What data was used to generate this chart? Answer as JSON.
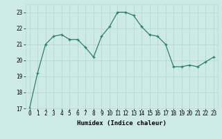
{
  "x": [
    0,
    1,
    2,
    3,
    4,
    5,
    6,
    7,
    8,
    9,
    10,
    11,
    12,
    13,
    14,
    15,
    16,
    17,
    18,
    19,
    20,
    21,
    22,
    23
  ],
  "y": [
    17.0,
    19.2,
    21.0,
    21.5,
    21.6,
    21.3,
    21.3,
    20.8,
    20.2,
    21.5,
    22.1,
    23.0,
    23.0,
    22.8,
    22.1,
    21.6,
    21.5,
    21.0,
    19.6,
    19.6,
    19.7,
    19.6,
    19.9,
    20.2
  ],
  "line_color": "#2d7d6e",
  "marker": "+",
  "marker_size": 3,
  "bg_color": "#ceeae6",
  "grid_color": "#b8d8d4",
  "xlabel": "Humidex (Indice chaleur)",
  "ylim": [
    17,
    23.5
  ],
  "yticks": [
    17,
    18,
    19,
    20,
    21,
    22,
    23
  ],
  "xticks": [
    0,
    1,
    2,
    3,
    4,
    5,
    6,
    7,
    8,
    9,
    10,
    11,
    12,
    13,
    14,
    15,
    16,
    17,
    18,
    19,
    20,
    21,
    22,
    23
  ],
  "axis_fontsize": 6.5,
  "tick_fontsize": 5.5
}
